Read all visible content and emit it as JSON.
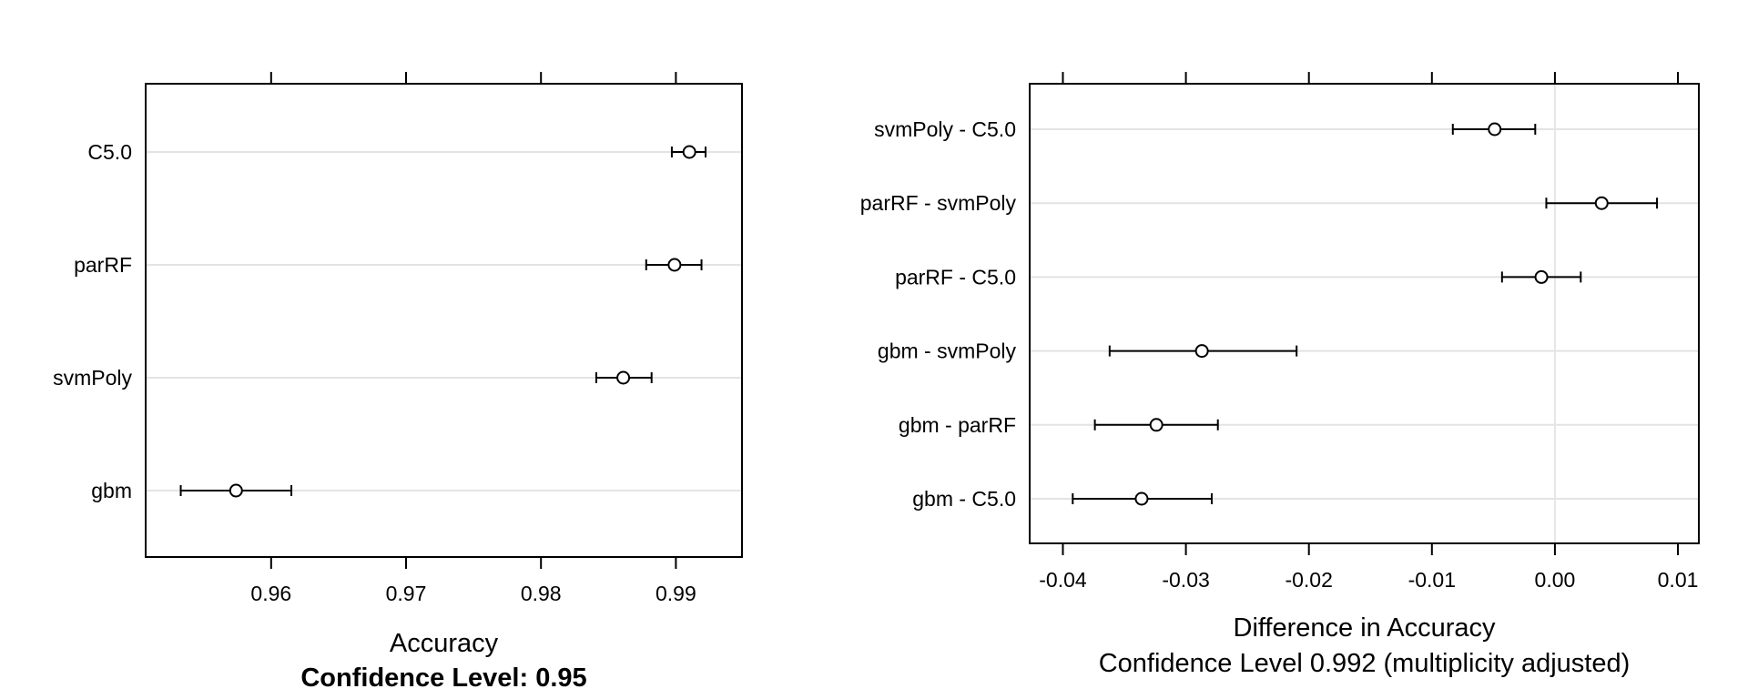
{
  "chart_data": [
    {
      "type": "dotplot",
      "xlabel": "Accuracy",
      "subtitle": "Confidence Level: 0.95",
      "categories": [
        "C5.0",
        "parRF",
        "svmPoly",
        "gbm"
      ],
      "estimate": [
        0.991,
        0.9899,
        0.9861,
        0.9574
      ],
      "lower": [
        0.9897,
        0.9878,
        0.9841,
        0.9533
      ],
      "upper": [
        0.9922,
        0.9919,
        0.9882,
        0.9615
      ],
      "xlim": [
        0.9507,
        0.9949
      ],
      "xticks": [
        0.96,
        0.97,
        0.98,
        0.99
      ],
      "xtick_labels": [
        "0.96",
        "0.97",
        "0.98",
        "0.99"
      ],
      "grid": true,
      "ref_line": null
    },
    {
      "type": "dotplot",
      "xlabel": "Difference in Accuracy",
      "subtitle": "Confidence Level 0.992  (multiplicity adjusted)",
      "categories": [
        "svmPoly - C5.0",
        "parRF - svmPoly",
        "parRF - C5.0",
        "gbm - svmPoly",
        "gbm - parRF",
        "gbm - C5.0"
      ],
      "estimate": [
        -0.0049,
        0.0038,
        -0.0011,
        -0.0287,
        -0.0324,
        -0.0336
      ],
      "lower": [
        -0.0083,
        -0.0007,
        -0.0043,
        -0.0362,
        -0.0374,
        -0.0392
      ],
      "upper": [
        -0.0016,
        0.0083,
        0.0021,
        -0.021,
        -0.0274,
        -0.0279
      ],
      "xlim": [
        -0.0427,
        0.0117
      ],
      "xticks": [
        -0.04,
        -0.03,
        -0.02,
        -0.01,
        0.0,
        0.01
      ],
      "xtick_labels": [
        "-0.04",
        "-0.03",
        "-0.02",
        "-0.01",
        "0.00",
        "0.01"
      ],
      "grid": true,
      "ref_line": 0
    }
  ]
}
